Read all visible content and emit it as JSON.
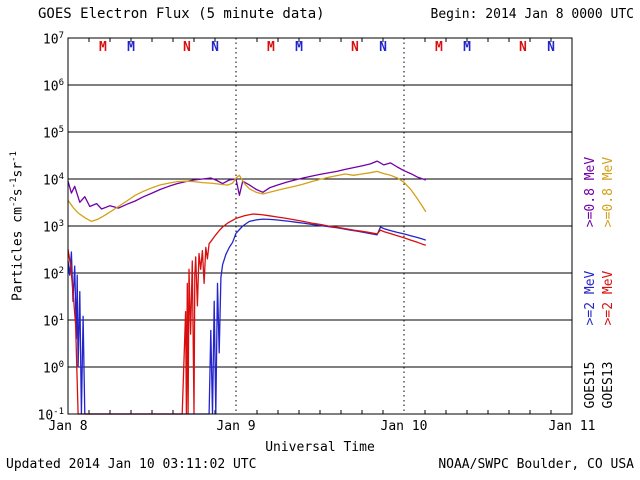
{
  "header": {
    "title": "GOES Electron Flux (5 minute data)",
    "begin": "Begin: 2014 Jan 8 0000 UTC"
  },
  "footer": {
    "updated": "Updated 2014 Jan 10 03:11:02 UTC",
    "credit": "NOAA/SWPC Boulder, CO USA"
  },
  "axes": {
    "x_label": "Universal Time",
    "y_base": "10",
    "y_exponents": [
      7,
      6,
      5,
      4,
      3,
      2,
      1,
      0,
      -1
    ],
    "y_label_segments": [
      {
        "text": "Particles cm"
      },
      {
        "sup": "-2"
      },
      {
        "text": "s"
      },
      {
        "sup": "-1"
      },
      {
        "text": "sr"
      },
      {
        "sup": "-1"
      }
    ],
    "x_ticks": [
      {
        "t": 0,
        "label": "Jan 8"
      },
      {
        "t": 1,
        "label": "Jan 9"
      },
      {
        "t": 2,
        "label": "Jan 10"
      },
      {
        "t": 3,
        "label": "Jan 11"
      }
    ]
  },
  "legend": {
    "entries": [
      {
        "text": ">=0.8 MeV",
        "color": "#7300a9",
        "col": 0,
        "row": 0
      },
      {
        "text": ">=0.8 MeV",
        "color": "#d4a017",
        "col": 1,
        "row": 0
      },
      {
        "text": ">=2 MeV",
        "color": "#2424cc",
        "col": 0,
        "row": 1
      },
      {
        "text": ">=2 MeV",
        "color": "#d90f0e",
        "col": 1,
        "row": 1
      },
      {
        "text": "GOES15",
        "color": "#000000",
        "col": 0,
        "row": 2
      },
      {
        "text": "GOES13",
        "color": "#000000",
        "col": 1,
        "row": 2
      }
    ]
  },
  "chart_data": {
    "type": "line",
    "title": "GOES Electron Flux (5 minute data)",
    "xlabel": "Universal Time",
    "ylabel": "Particles cm-2s-1sr-1",
    "x_unit_days_since": "2014 Jan 8 0000 UTC",
    "xlim": [
      0,
      3
    ],
    "ylog": true,
    "ylim_exp": [
      -1,
      7
    ],
    "grid": "horizontal-decades",
    "day_gridlines": [
      1,
      2
    ],
    "threshold": {
      "value": 1000,
      "style": "dashed"
    },
    "series": [
      {
        "name": "GOES15 >=0.8 MeV",
        "color": "#7300a9",
        "points": [
          [
            0,
            9000
          ],
          [
            0.02,
            5000
          ],
          [
            0.04,
            7000
          ],
          [
            0.07,
            3200
          ],
          [
            0.1,
            4200
          ],
          [
            0.13,
            2600
          ],
          [
            0.17,
            3000
          ],
          [
            0.2,
            2300
          ],
          [
            0.25,
            2700
          ],
          [
            0.3,
            2400
          ],
          [
            0.35,
            2900
          ],
          [
            0.4,
            3400
          ],
          [
            0.45,
            4200
          ],
          [
            0.5,
            5000
          ],
          [
            0.55,
            6000
          ],
          [
            0.6,
            7000
          ],
          [
            0.65,
            8000
          ],
          [
            0.7,
            8800
          ],
          [
            0.75,
            9500
          ],
          [
            0.8,
            10000
          ],
          [
            0.85,
            10500
          ],
          [
            0.88,
            9500
          ],
          [
            0.92,
            8000
          ],
          [
            0.96,
            9500
          ],
          [
            1,
            10000
          ],
          [
            1.02,
            4500
          ],
          [
            1.04,
            9000
          ],
          [
            1.08,
            7500
          ],
          [
            1.12,
            6000
          ],
          [
            1.16,
            5200
          ],
          [
            1.2,
            6500
          ],
          [
            1.25,
            7500
          ],
          [
            1.3,
            8500
          ],
          [
            1.35,
            9500
          ],
          [
            1.4,
            10500
          ],
          [
            1.45,
            11500
          ],
          [
            1.5,
            12500
          ],
          [
            1.55,
            13500
          ],
          [
            1.6,
            14500
          ],
          [
            1.65,
            16000
          ],
          [
            1.7,
            17500
          ],
          [
            1.75,
            19000
          ],
          [
            1.8,
            21000
          ],
          [
            1.84,
            24000
          ],
          [
            1.88,
            20000
          ],
          [
            1.92,
            22000
          ],
          [
            1.96,
            18000
          ],
          [
            2,
            15000
          ],
          [
            2.04,
            13000
          ],
          [
            2.08,
            11000
          ],
          [
            2.13,
            9500
          ]
        ]
      },
      {
        "name": "GOES13 >=0.8 MeV",
        "color": "#d4a017",
        "points": [
          [
            0,
            3500
          ],
          [
            0.03,
            2500
          ],
          [
            0.06,
            1900
          ],
          [
            0.1,
            1500
          ],
          [
            0.14,
            1250
          ],
          [
            0.18,
            1400
          ],
          [
            0.22,
            1700
          ],
          [
            0.26,
            2100
          ],
          [
            0.3,
            2600
          ],
          [
            0.35,
            3400
          ],
          [
            0.4,
            4500
          ],
          [
            0.45,
            5500
          ],
          [
            0.5,
            6500
          ],
          [
            0.55,
            7500
          ],
          [
            0.6,
            8200
          ],
          [
            0.65,
            8800
          ],
          [
            0.7,
            9000
          ],
          [
            0.75,
            8800
          ],
          [
            0.8,
            8400
          ],
          [
            0.85,
            8200
          ],
          [
            0.9,
            7800
          ],
          [
            0.95,
            7400
          ],
          [
            0.98,
            8200
          ],
          [
            1,
            10500
          ],
          [
            1.02,
            12000
          ],
          [
            1.05,
            8000
          ],
          [
            1.08,
            6200
          ],
          [
            1.12,
            5200
          ],
          [
            1.16,
            4800
          ],
          [
            1.2,
            5200
          ],
          [
            1.25,
            5800
          ],
          [
            1.3,
            6400
          ],
          [
            1.35,
            7000
          ],
          [
            1.4,
            7800
          ],
          [
            1.45,
            8800
          ],
          [
            1.5,
            9800
          ],
          [
            1.55,
            10800
          ],
          [
            1.6,
            11800
          ],
          [
            1.65,
            12800
          ],
          [
            1.7,
            12000
          ],
          [
            1.75,
            12800
          ],
          [
            1.8,
            13600
          ],
          [
            1.84,
            14500
          ],
          [
            1.88,
            13000
          ],
          [
            1.92,
            12000
          ],
          [
            1.96,
            10500
          ],
          [
            2,
            8500
          ],
          [
            2.04,
            6000
          ],
          [
            2.08,
            3800
          ],
          [
            2.11,
            2600
          ],
          [
            2.13,
            2000
          ]
        ]
      },
      {
        "name": "GOES15 >=2 MeV",
        "color": "#2424cc",
        "points": [
          [
            0,
            180
          ],
          [
            0.01,
            90
          ],
          [
            0.02,
            280
          ],
          [
            0.03,
            25
          ],
          [
            0.04,
            140
          ],
          [
            0.05,
            4
          ],
          [
            0.055,
            90
          ],
          [
            0.06,
            1
          ],
          [
            0.07,
            40
          ],
          [
            0.08,
            0.1
          ],
          [
            0.09,
            12
          ],
          [
            0.1,
            0.1
          ],
          [
            0.2,
            0.1
          ],
          [
            0.3,
            0.1
          ],
          [
            0.4,
            0.1
          ],
          [
            0.5,
            0.1
          ],
          [
            0.6,
            0.1
          ],
          [
            0.7,
            0.1
          ],
          [
            0.8,
            0.1
          ],
          [
            0.84,
            0.1
          ],
          [
            0.85,
            6
          ],
          [
            0.86,
            0.1
          ],
          [
            0.87,
            25
          ],
          [
            0.88,
            0.1
          ],
          [
            0.89,
            60
          ],
          [
            0.9,
            2
          ],
          [
            0.91,
            80
          ],
          [
            0.92,
            150
          ],
          [
            0.94,
            250
          ],
          [
            0.96,
            350
          ],
          [
            0.98,
            450
          ],
          [
            1,
            700
          ],
          [
            1.04,
            1000
          ],
          [
            1.08,
            1250
          ],
          [
            1.12,
            1350
          ],
          [
            1.16,
            1400
          ],
          [
            1.2,
            1380
          ],
          [
            1.24,
            1350
          ],
          [
            1.28,
            1300
          ],
          [
            1.32,
            1250
          ],
          [
            1.36,
            1200
          ],
          [
            1.4,
            1150
          ],
          [
            1.44,
            1100
          ],
          [
            1.48,
            1050
          ],
          [
            1.52,
            1000
          ],
          [
            1.56,
            960
          ],
          [
            1.6,
            920
          ],
          [
            1.64,
            870
          ],
          [
            1.68,
            820
          ],
          [
            1.72,
            780
          ],
          [
            1.76,
            730
          ],
          [
            1.8,
            690
          ],
          [
            1.84,
            650
          ],
          [
            1.86,
            950
          ],
          [
            1.88,
            880
          ],
          [
            1.92,
            800
          ],
          [
            1.96,
            730
          ],
          [
            2,
            680
          ],
          [
            2.04,
            620
          ],
          [
            2.08,
            570
          ],
          [
            2.11,
            530
          ],
          [
            2.13,
            500
          ]
        ]
      },
      {
        "name": "GOES13 >=2 MeV",
        "color": "#d90f0e",
        "points": [
          [
            0,
            320
          ],
          [
            0.015,
            150
          ],
          [
            0.03,
            40
          ],
          [
            0.045,
            8
          ],
          [
            0.06,
            0.1
          ],
          [
            0.1,
            0.1
          ],
          [
            0.2,
            0.1
          ],
          [
            0.3,
            0.1
          ],
          [
            0.4,
            0.1
          ],
          [
            0.5,
            0.1
          ],
          [
            0.6,
            0.1
          ],
          [
            0.68,
            0.1
          ],
          [
            0.7,
            15
          ],
          [
            0.705,
            0.1
          ],
          [
            0.71,
            60
          ],
          [
            0.715,
            0.1
          ],
          [
            0.72,
            120
          ],
          [
            0.73,
            5
          ],
          [
            0.74,
            180
          ],
          [
            0.75,
            0.1
          ],
          [
            0.755,
            90
          ],
          [
            0.76,
            220
          ],
          [
            0.77,
            20
          ],
          [
            0.78,
            260
          ],
          [
            0.79,
            120
          ],
          [
            0.8,
            300
          ],
          [
            0.81,
            60
          ],
          [
            0.82,
            350
          ],
          [
            0.83,
            200
          ],
          [
            0.84,
            420
          ],
          [
            0.86,
            520
          ],
          [
            0.88,
            650
          ],
          [
            0.9,
            800
          ],
          [
            0.92,
            950
          ],
          [
            0.95,
            1150
          ],
          [
            1,
            1450
          ],
          [
            1.05,
            1650
          ],
          [
            1.1,
            1800
          ],
          [
            1.15,
            1750
          ],
          [
            1.2,
            1650
          ],
          [
            1.25,
            1550
          ],
          [
            1.3,
            1450
          ],
          [
            1.35,
            1350
          ],
          [
            1.4,
            1250
          ],
          [
            1.45,
            1150
          ],
          [
            1.5,
            1080
          ],
          [
            1.55,
            1000
          ],
          [
            1.6,
            940
          ],
          [
            1.65,
            880
          ],
          [
            1.7,
            820
          ],
          [
            1.75,
            770
          ],
          [
            1.8,
            720
          ],
          [
            1.84,
            680
          ],
          [
            1.86,
            820
          ],
          [
            1.88,
            760
          ],
          [
            1.92,
            690
          ],
          [
            1.96,
            620
          ],
          [
            2,
            560
          ],
          [
            2.04,
            500
          ],
          [
            2.08,
            450
          ],
          [
            2.11,
            410
          ],
          [
            2.13,
            390
          ]
        ]
      }
    ],
    "markers": [
      {
        "t": 0.208,
        "label": "M",
        "color": "#d90f0e"
      },
      {
        "t": 0.375,
        "label": "M",
        "color": "#2424cc"
      },
      {
        "t": 0.708,
        "label": "N",
        "color": "#d90f0e"
      },
      {
        "t": 0.875,
        "label": "N",
        "color": "#2424cc"
      },
      {
        "t": 1.208,
        "label": "M",
        "color": "#d90f0e"
      },
      {
        "t": 1.375,
        "label": "M",
        "color": "#2424cc"
      },
      {
        "t": 1.708,
        "label": "N",
        "color": "#d90f0e"
      },
      {
        "t": 1.875,
        "label": "N",
        "color": "#2424cc"
      },
      {
        "t": 2.208,
        "label": "M",
        "color": "#d90f0e"
      },
      {
        "t": 2.375,
        "label": "M",
        "color": "#2424cc"
      },
      {
        "t": 2.708,
        "label": "N",
        "color": "#d90f0e"
      },
      {
        "t": 2.875,
        "label": "N",
        "color": "#2424cc"
      }
    ]
  }
}
